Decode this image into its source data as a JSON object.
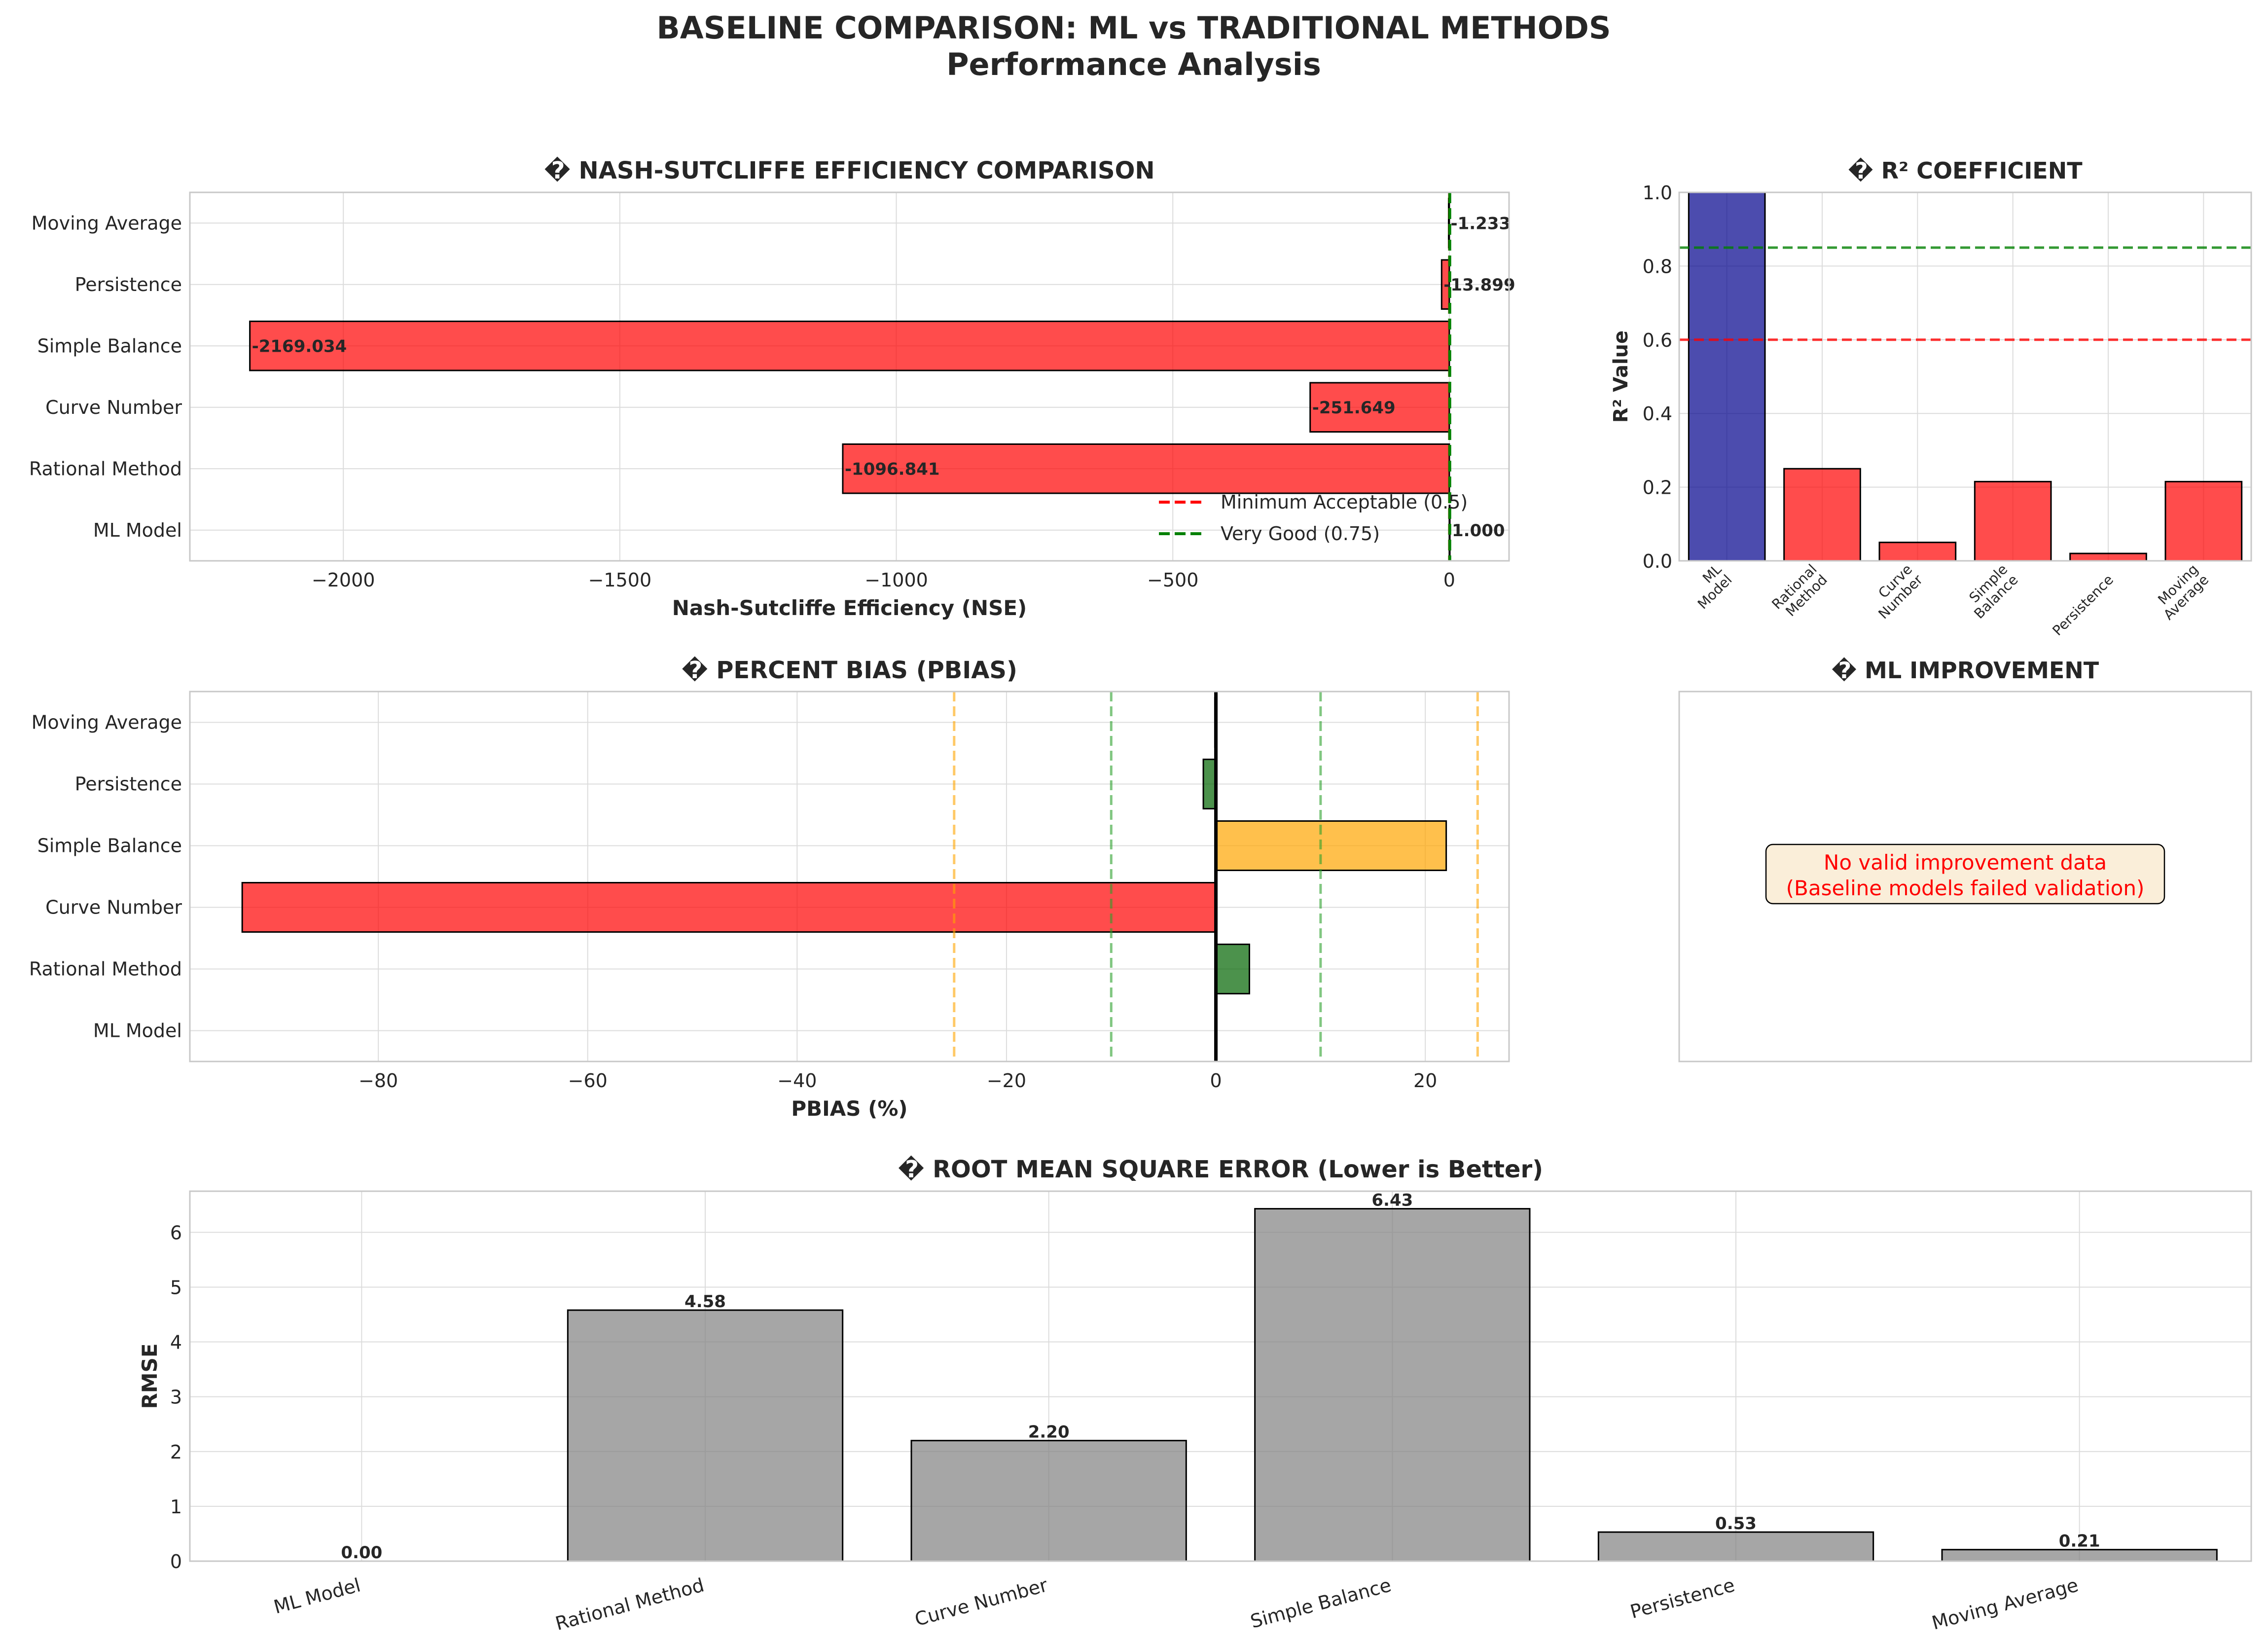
{
  "figure": {
    "title_line1": "BASELINE COMPARISON: ML vs TRADITIONAL METHODS",
    "title_line2": "Performance Analysis"
  },
  "colors": {
    "ml_bar": "#00008B",
    "fail_bar": "#FF0000",
    "good_bar": "#006400",
    "warn_bar": "#FFA500",
    "rmse_bar": "#808080",
    "red_line": "#FF0000",
    "green_line": "#008000",
    "orange_line": "#FFA500",
    "light_green_line": "#2CA02C"
  },
  "chart_data": [
    {
      "id": "nse",
      "type": "bar",
      "orientation": "horizontal",
      "title": "� NASH-SUTCLIFFE EFFICIENCY COMPARISON",
      "xlabel": "Nash-Sutcliffe Efficiency (NSE)",
      "categories": [
        "ML Model",
        "Rational Method",
        "Curve Number",
        "Simple Balance",
        "Persistence",
        "Moving Average"
      ],
      "values": [
        1.0,
        -1096.841,
        -251.649,
        -2169.034,
        -13.899,
        -1.233
      ],
      "value_labels": [
        "1.000",
        "-1096.841",
        "-251.649",
        "-2169.034",
        "-13.899",
        "-1.233"
      ],
      "xlim": [
        -2277.5,
        108.0
      ],
      "xticks": [
        -2000,
        -1500,
        -1000,
        -500,
        0
      ],
      "xtick_labels": [
        "−2000",
        "−1500",
        "−1000",
        "−500",
        "0"
      ],
      "reference_lines": [
        {
          "value": 0.5,
          "label": "Minimum Acceptable (0.5)",
          "color": "red_line"
        },
        {
          "value": 0.75,
          "label": "Very Good (0.75)",
          "color": "green_line"
        }
      ],
      "legend": "lower-right",
      "grid": true
    },
    {
      "id": "r2",
      "type": "bar",
      "title": "� R² COEFFICIENT",
      "ylabel": "R² Value",
      "categories": [
        "ML\nModel",
        "Rational\nMethod",
        "Curve\nNumber",
        "Simple\nBalance",
        "Persistence",
        "Moving\nAverage"
      ],
      "values": [
        1.0,
        0.25,
        0.05,
        0.215,
        0.02,
        0.215
      ],
      "ylim": [
        0,
        1.0
      ],
      "yticks": [
        0.0,
        0.2,
        0.4,
        0.6,
        0.8,
        1.0
      ],
      "ytick_labels": [
        "0.0",
        "0.2",
        "0.4",
        "0.6",
        "0.8",
        "1.0"
      ],
      "reference_lines": [
        {
          "value": 0.6,
          "color": "red_line"
        },
        {
          "value": 0.85,
          "color": "green_line"
        }
      ],
      "grid": true
    },
    {
      "id": "pbias",
      "type": "bar",
      "orientation": "horizontal",
      "title": "� PERCENT BIAS (PBIAS)",
      "xlabel": "PBIAS (%)",
      "categories": [
        "ML Model",
        "Rational Method",
        "Curve Number",
        "Simple Balance",
        "Persistence",
        "Moving Average"
      ],
      "values": [
        0.0,
        3.2,
        -93.0,
        22.0,
        -1.2,
        -0.1
      ],
      "xlim": [
        -98,
        28
      ],
      "xticks": [
        -80,
        -60,
        -40,
        -20,
        0,
        20
      ],
      "xtick_labels": [
        "−80",
        "−60",
        "−40",
        "−20",
        "0",
        "20"
      ],
      "reference_lines": [
        {
          "value": -25,
          "color": "orange_line"
        },
        {
          "value": -10,
          "color": "light_green_line"
        },
        {
          "value": 10,
          "color": "light_green_line"
        },
        {
          "value": 25,
          "color": "orange_line"
        },
        {
          "value": 0,
          "color": "black"
        }
      ],
      "grid": true
    },
    {
      "id": "improvement",
      "type": "table",
      "title": "� ML IMPROVEMENT",
      "message_line1": "No valid improvement data",
      "message_line2": "(Baseline models failed validation)"
    },
    {
      "id": "rmse",
      "type": "bar",
      "title": "� ROOT MEAN SQUARE ERROR (Lower is Better)",
      "ylabel": "RMSE",
      "categories": [
        "ML Model",
        "Rational Method",
        "Curve Number",
        "Simple Balance",
        "Persistence",
        "Moving Average"
      ],
      "values": [
        0.0,
        4.58,
        2.2,
        6.43,
        0.53,
        0.21
      ],
      "value_labels": [
        "0.00",
        "4.58",
        "2.20",
        "6.43",
        "0.53",
        "0.21"
      ],
      "ylim": [
        0,
        6.75
      ],
      "yticks": [
        0,
        1,
        2,
        3,
        4,
        5,
        6
      ],
      "ytick_labels": [
        "0",
        "1",
        "2",
        "3",
        "4",
        "5",
        "6"
      ],
      "grid": true
    }
  ]
}
